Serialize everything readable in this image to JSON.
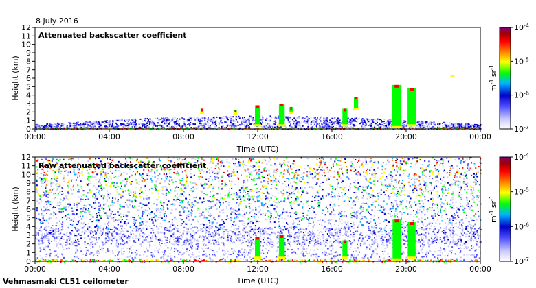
{
  "date_label": "8 July 2016",
  "instrument_label": "Vehmasmaki CL51 ceilometer",
  "colors": {
    "colormap": [
      "#ffffff",
      "#c8c8ff",
      "#5050ff",
      "#0000c8",
      "#00b4ff",
      "#00ff00",
      "#ffff00",
      "#ff8000",
      "#ff0000",
      "#a00000",
      "#800080"
    ]
  },
  "chart_data": [
    {
      "type": "heatmap",
      "title": "Attenuated backscatter coefficient",
      "xlabel": "Time (UTC)",
      "ylabel": "Height (km)",
      "x_ticks": [
        "00:00",
        "04:00",
        "08:00",
        "12:00",
        "16:00",
        "20:00",
        "00:00"
      ],
      "x_range_hours": [
        0,
        24
      ],
      "y_ticks": [
        0,
        1,
        2,
        3,
        4,
        5,
        6,
        7,
        8,
        9,
        10,
        11,
        12
      ],
      "ylim": [
        0,
        12
      ],
      "colorbar": {
        "unit_base": "m",
        "unit_base_exp": "-1",
        "unit_sr": "sr",
        "unit_sr_exp": "-1",
        "tick_base": "10",
        "tick_exps": [
          "-4",
          "-5",
          "-6",
          "-7"
        ],
        "values": [
          0.0001,
          1e-05,
          1e-06,
          1e-07
        ],
        "scale": "log"
      },
      "features": [
        {
          "kind": "boundary_layer",
          "time_range": [
            0,
            24
          ],
          "top_km": [
            0.6,
            1.6
          ]
        },
        {
          "kind": "cloud",
          "time_h": 9.0,
          "base_km": 1.8,
          "top_km": 2.4
        },
        {
          "kind": "cloud",
          "time_h": 10.8,
          "base_km": 1.7,
          "top_km": 2.2
        },
        {
          "kind": "cloud",
          "time_h": 12.0,
          "base_km": 0.3,
          "top_km": 2.8
        },
        {
          "kind": "cloud",
          "time_h": 13.3,
          "base_km": 0.3,
          "top_km": 3.0
        },
        {
          "kind": "cloud",
          "time_h": 13.8,
          "base_km": 1.8,
          "top_km": 2.6
        },
        {
          "kind": "cloud",
          "time_h": 16.7,
          "base_km": 0.3,
          "top_km": 2.4
        },
        {
          "kind": "cloud",
          "time_h": 17.3,
          "base_km": 2.2,
          "top_km": 3.8
        },
        {
          "kind": "cloud",
          "time_h": 19.5,
          "base_km": 0.1,
          "top_km": 5.2
        },
        {
          "kind": "cloud",
          "time_h": 20.3,
          "base_km": 0.3,
          "top_km": 4.8
        },
        {
          "kind": "cloud",
          "time_h": 22.5,
          "base_km": 6.1,
          "top_km": 6.4
        }
      ]
    },
    {
      "type": "heatmap",
      "title": "Raw attenuated backscatter coefficient",
      "xlabel": "Time (UTC)",
      "ylabel": "Height (km)",
      "x_ticks": [
        "00:00",
        "04:00",
        "08:00",
        "12:00",
        "16:00",
        "20:00",
        "00:00"
      ],
      "x_range_hours": [
        0,
        24
      ],
      "y_ticks": [
        0,
        1,
        2,
        3,
        4,
        5,
        6,
        7,
        8,
        9,
        10,
        11,
        12
      ],
      "ylim": [
        0,
        12
      ],
      "colorbar": {
        "unit_base": "m",
        "unit_base_exp": "-1",
        "unit_sr": "sr",
        "unit_sr_exp": "-1",
        "tick_base": "10",
        "tick_exps": [
          "-4",
          "-5",
          "-6",
          "-7"
        ],
        "values": [
          0.0001,
          1e-05,
          1e-06,
          1e-07
        ],
        "scale": "log"
      },
      "features": [
        {
          "kind": "noise_upper",
          "height_range_km": [
            5,
            12
          ]
        },
        {
          "kind": "cloud",
          "time_h": 12.0,
          "base_km": 0.3,
          "top_km": 2.8
        },
        {
          "kind": "cloud",
          "time_h": 13.3,
          "base_km": 0.3,
          "top_km": 3.0
        },
        {
          "kind": "cloud",
          "time_h": 16.7,
          "base_km": 0.3,
          "top_km": 2.4
        },
        {
          "kind": "cloud",
          "time_h": 19.5,
          "base_km": 0.1,
          "top_km": 4.8
        },
        {
          "kind": "cloud",
          "time_h": 20.3,
          "base_km": 0.3,
          "top_km": 4.5
        }
      ]
    }
  ]
}
